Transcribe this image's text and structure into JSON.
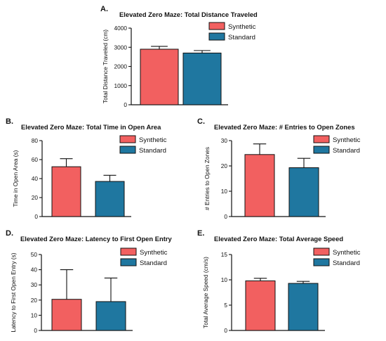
{
  "colors": {
    "synthetic": "#f26060",
    "standard": "#1f77a0"
  },
  "chart_data": [
    {
      "type": "bar",
      "panel": "A.",
      "title": "Elevated Zero Maze: Total Distance Traveled",
      "ylabel": "Total Distance Traveled (cm)",
      "ylim": [
        0,
        4000
      ],
      "yticks": [
        0,
        1000,
        2000,
        3000,
        4000
      ],
      "legend": "top-right",
      "series": [
        {
          "name": "Synthetic",
          "value": 2900,
          "error": 150
        },
        {
          "name": "Standard",
          "value": 2700,
          "error": 130
        }
      ]
    },
    {
      "type": "bar",
      "panel": "B.",
      "title": "Elevated Zero Maze: Total Time in Open Area",
      "ylabel": "Time in Open Area (s)",
      "ylim": [
        0,
        80
      ],
      "yticks": [
        0,
        20,
        40,
        60,
        80
      ],
      "legend": "top-right",
      "series": [
        {
          "name": "Synthetic",
          "value": 52.5,
          "error": 8.5
        },
        {
          "name": "Standard",
          "value": 37,
          "error": 6.5
        }
      ]
    },
    {
      "type": "bar",
      "panel": "C.",
      "title": "Elevated Zero Maze: # Entries to Open Zones",
      "ylabel": "# Entries to Open Zones",
      "ylim": [
        0,
        30
      ],
      "yticks": [
        0,
        10,
        20,
        30
      ],
      "legend": "top-right",
      "series": [
        {
          "name": "Synthetic",
          "value": 24.5,
          "error": 4.2
        },
        {
          "name": "Standard",
          "value": 19.3,
          "error": 3.7
        }
      ]
    },
    {
      "type": "bar",
      "panel": "D.",
      "title": "Elevated Zero Maze: Latency to First Open Entry",
      "ylabel": "Latency to First Open Entry (s)",
      "ylim": [
        0,
        50
      ],
      "yticks": [
        0,
        10,
        20,
        30,
        40,
        50
      ],
      "legend": "top-right",
      "series": [
        {
          "name": "Synthetic",
          "value": 20.5,
          "error": 19.5
        },
        {
          "name": "Standard",
          "value": 19,
          "error": 15.5
        }
      ]
    },
    {
      "type": "bar",
      "panel": "E.",
      "title": "Elevated Zero Maze: Total Average Speed",
      "ylabel": "Total Average Speed (cm/s)",
      "ylim": [
        0,
        15
      ],
      "yticks": [
        0,
        5,
        10,
        15
      ],
      "legend": "top-right",
      "series": [
        {
          "name": "Synthetic",
          "value": 9.8,
          "error": 0.5
        },
        {
          "name": "Standard",
          "value": 9.3,
          "error": 0.4
        }
      ]
    }
  ]
}
